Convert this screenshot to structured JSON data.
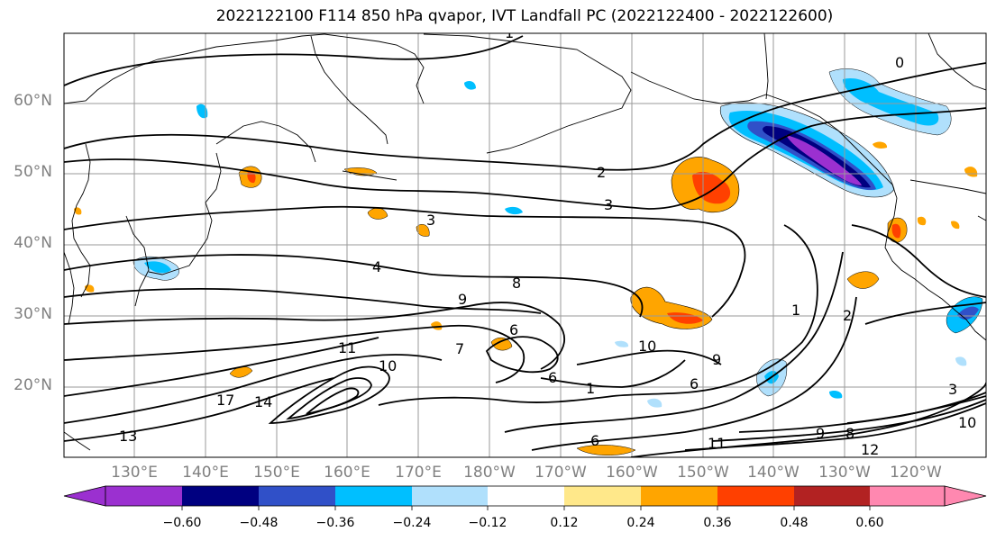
{
  "title": "2022122100 F114 850 hPa qvapor, IVT Landfall PC (2022122400 - 2022122600)",
  "latitude_labels": [
    "60°N",
    "50°N",
    "40°N",
    "30°N",
    "20°N"
  ],
  "longitude_labels": [
    "130°E",
    "140°E",
    "150°E",
    "160°E",
    "170°E",
    "180°W",
    "170°W",
    "160°W",
    "150°W",
    "140°W",
    "130°W",
    "120°W"
  ],
  "contour_labels": [
    "1",
    "2",
    "3",
    "4",
    "8",
    "9",
    "10",
    "11",
    "12",
    "13",
    "14",
    "17",
    "6",
    "0",
    "7"
  ],
  "colorbar": {
    "ticks": [
      "−0.60",
      "−0.48",
      "−0.36",
      "−0.24",
      "−0.12",
      "0.12",
      "0.24",
      "0.36",
      "0.48",
      "0.60"
    ],
    "colors": [
      "#9b30d0",
      "#000080",
      "#3050c8",
      "#00bfff",
      "#b0e0fc",
      "#ffffff",
      "#ffe88a",
      "#ffa500",
      "#ff4000",
      "#b22222",
      "#ff88b0"
    ]
  }
}
